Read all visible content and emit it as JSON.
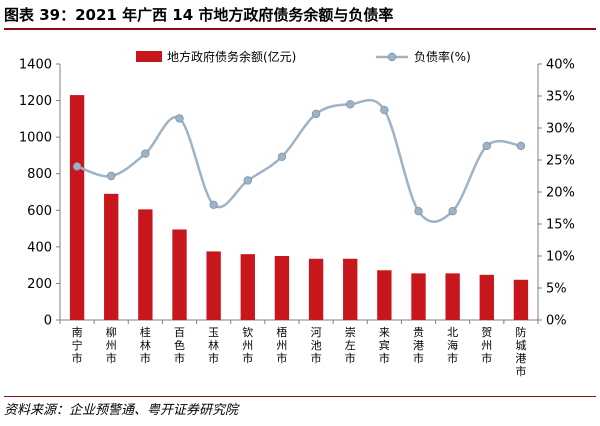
{
  "header": {
    "title": "图表 39：2021 年广西 14 市地方政府债务余额与负债率"
  },
  "footer": {
    "source": "资料来源：企业预警通、粤开证券研究院"
  },
  "chart_data": {
    "type": "bar",
    "categories": [
      "南宁市",
      "柳州市",
      "桂林市",
      "百色市",
      "玉林市",
      "钦州市",
      "梧州市",
      "河池市",
      "崇左市",
      "来宾市",
      "贵港市",
      "北海市",
      "贺州市",
      "防城港市"
    ],
    "series": [
      {
        "name": "地方政府债务余额(亿元)",
        "type": "bar",
        "axis": "left",
        "values": [
          1230,
          690,
          605,
          495,
          375,
          360,
          350,
          335,
          335,
          272,
          255,
          255,
          247,
          220
        ]
      },
      {
        "name": "负债率(%)",
        "type": "line",
        "axis": "right",
        "values": [
          24.0,
          22.5,
          26.0,
          31.5,
          18.0,
          21.8,
          25.5,
          32.2,
          33.7,
          32.8,
          17.0,
          17.0,
          27.2,
          27.2
        ]
      }
    ],
    "left_axis": {
      "min": 0,
      "max": 1400,
      "ticks": [
        "0",
        "200",
        "400",
        "600",
        "800",
        "1000",
        "1200",
        "1400"
      ]
    },
    "right_axis": {
      "min": 0,
      "max": 40,
      "ticks": [
        "0%",
        "5%",
        "10%",
        "15%",
        "20%",
        "25%",
        "30%",
        "35%",
        "40%"
      ]
    },
    "legend_position": "top-center",
    "grid": false,
    "colors": {
      "bar": "#c8161d",
      "line": "#9fb3c6",
      "marker": "#9fb3c6"
    }
  }
}
